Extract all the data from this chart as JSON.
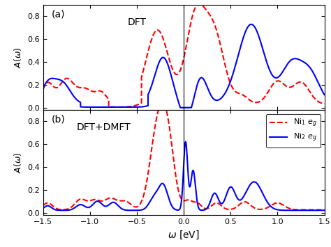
{
  "title_a": "DFT",
  "title_b": "DFT+DMFT",
  "xlabel": "$\\omega$ [eV]",
  "ylabel": "$A(\\omega)$",
  "xlim": [
    -1.5,
    1.5
  ],
  "ylim_a": [
    -0.02,
    0.9
  ],
  "ylim_b": [
    -0.02,
    0.9
  ],
  "yticks": [
    0.0,
    0.2,
    0.4,
    0.6,
    0.8
  ],
  "xticks": [
    -1.5,
    -1.0,
    -0.5,
    0.0,
    0.5,
    1.0,
    1.5
  ],
  "label_ni1": "Ni$_1$ $e_g$",
  "label_ni2": "Ni$_2$ $e_g$",
  "color_ni1": "red",
  "color_ni2": "blue",
  "linestyle_ni1": "--",
  "linestyle_ni2": "-",
  "linewidth": 1.5,
  "panel_a_label": "(a)",
  "panel_b_label": "(b)",
  "background_color": "#ffffff"
}
